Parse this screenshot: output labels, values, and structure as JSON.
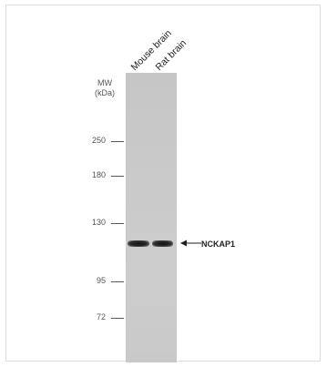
{
  "lanes": [
    {
      "label": "Mouse brain"
    },
    {
      "label": "Rat brain"
    }
  ],
  "mw_axis": {
    "title_line1": "MW",
    "title_line2": "(kDa)",
    "markers": [
      {
        "label": "250",
        "kda": 250
      },
      {
        "label": "180",
        "kda": 180
      },
      {
        "label": "130",
        "kda": 130
      },
      {
        "label": "95",
        "kda": 95
      },
      {
        "label": "72",
        "kda": 72
      }
    ]
  },
  "target": {
    "label": "NCKAP1"
  },
  "colors": {
    "membrane": "#c8c8c8",
    "band": "#1a1a1a",
    "text": "#222222"
  }
}
